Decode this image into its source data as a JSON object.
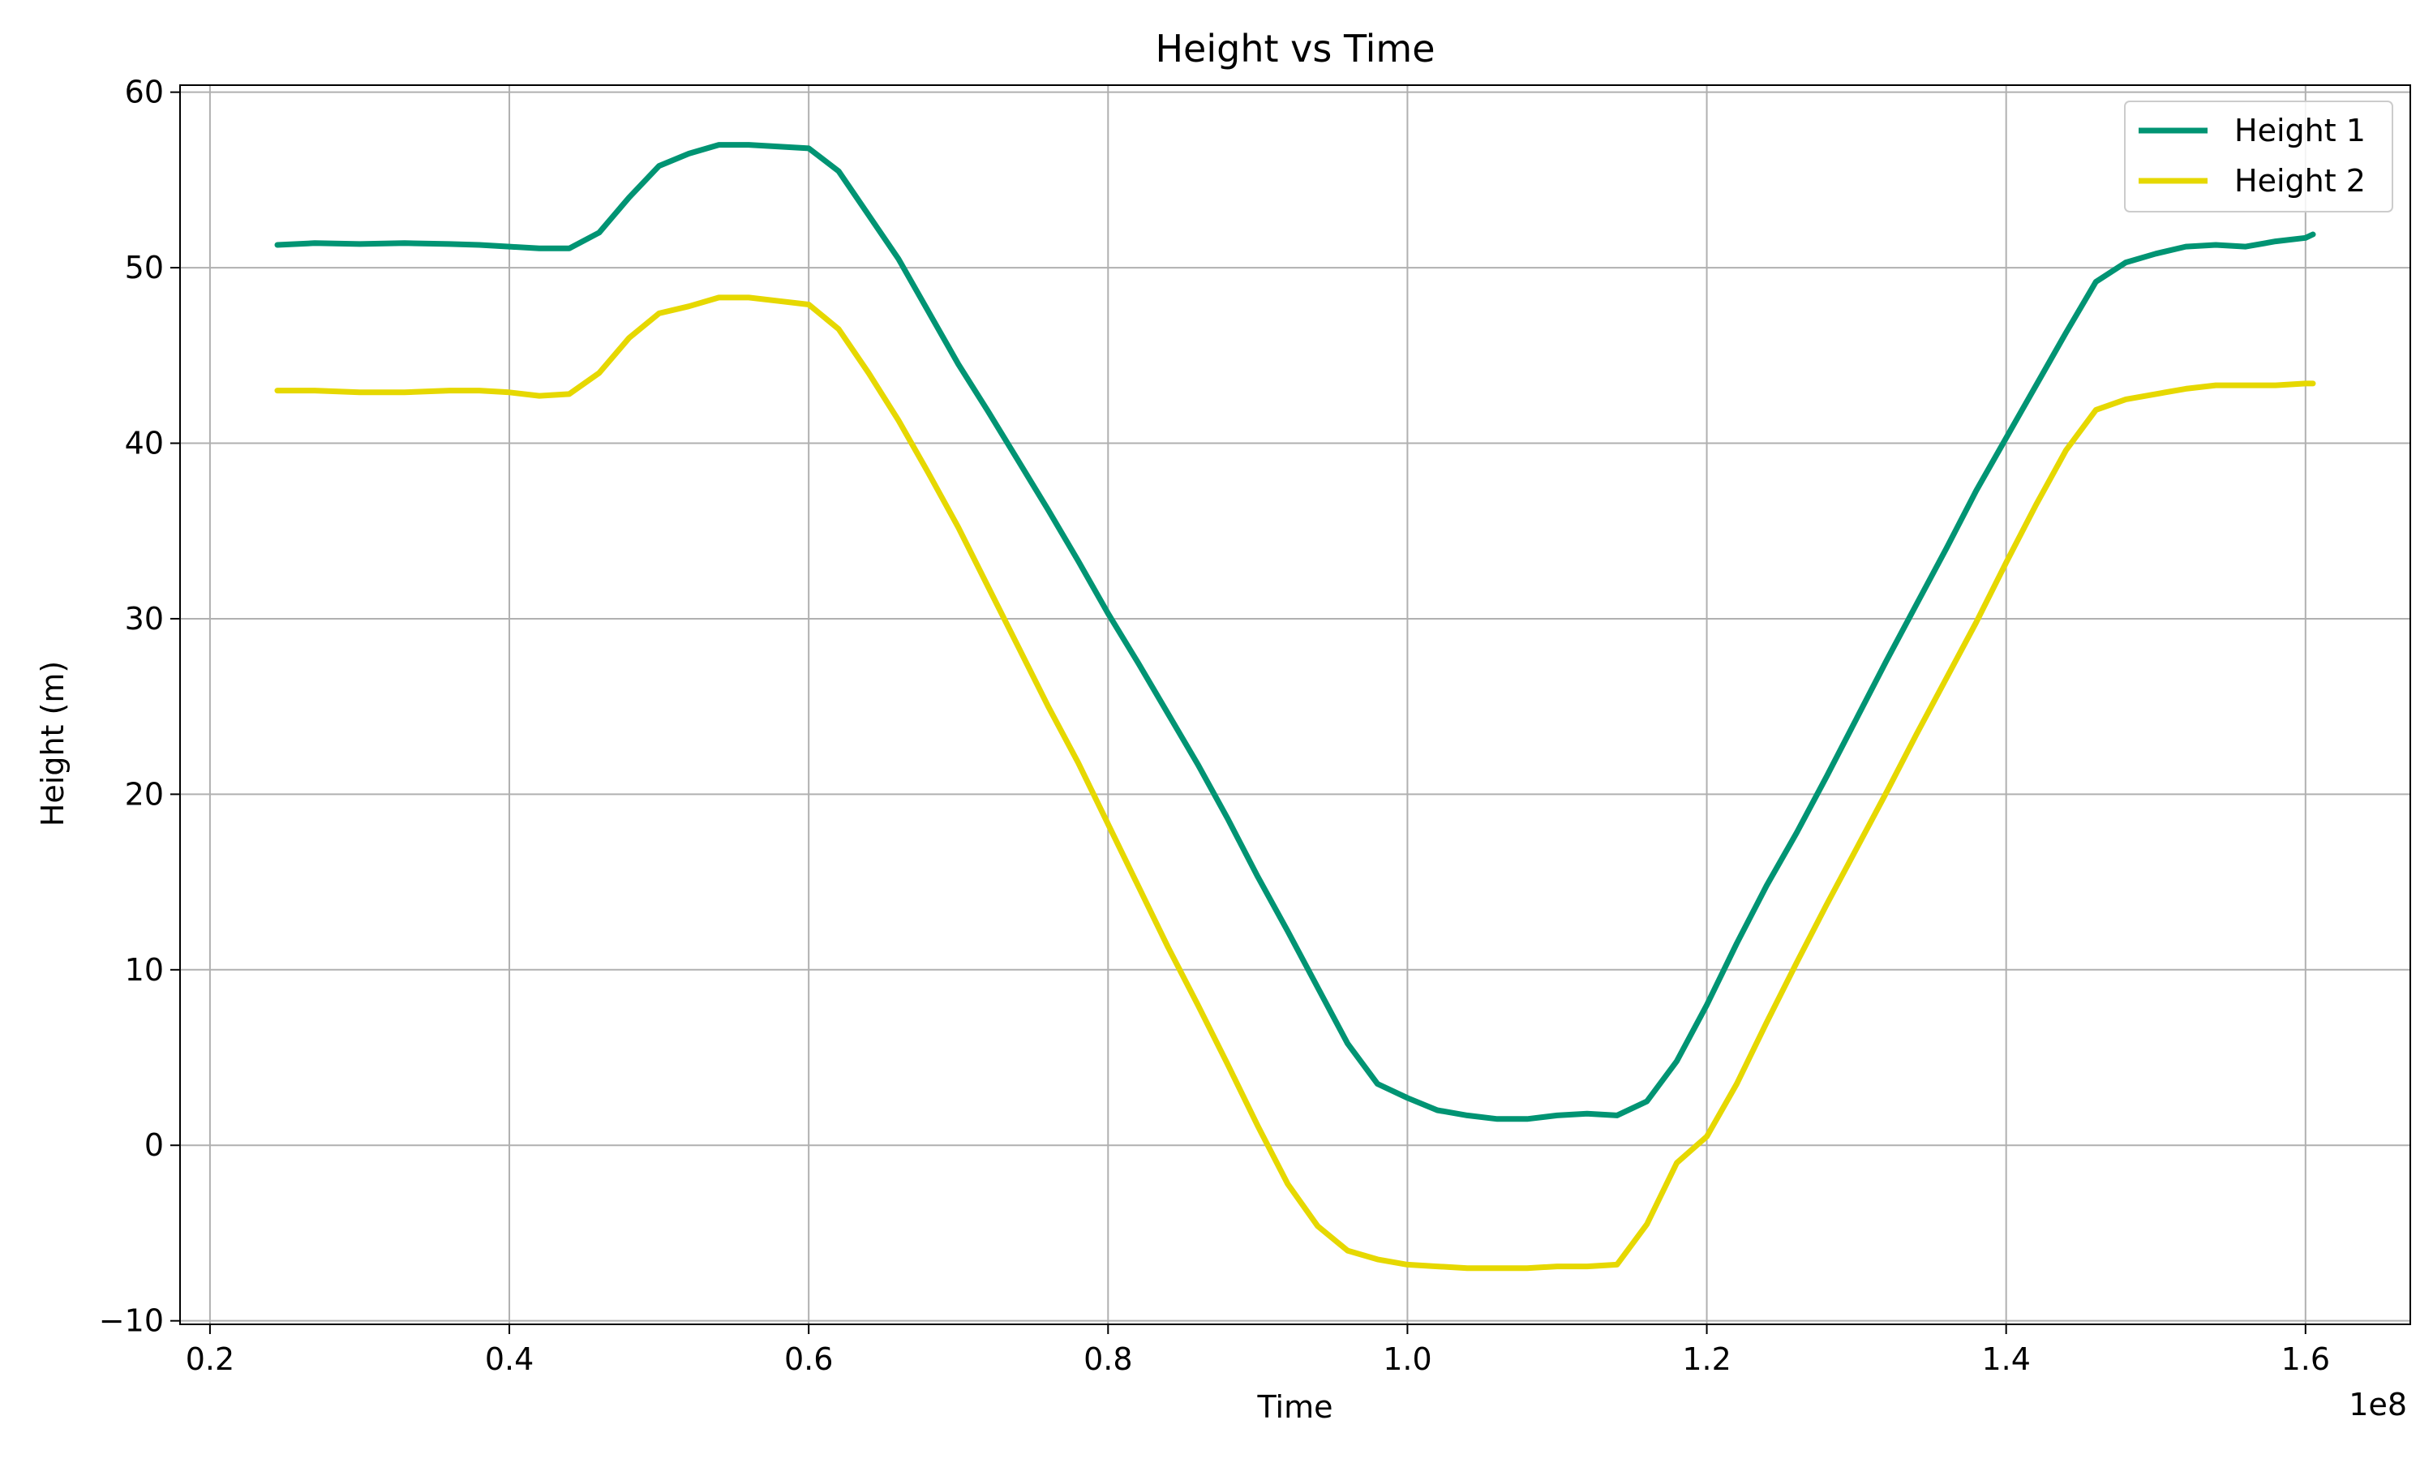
{
  "chart_data": {
    "type": "line",
    "title": "Height vs Time",
    "xlabel": "Time",
    "ylabel": "Height (m)",
    "x_offset_label": "1e8",
    "xlim": [
      0.18,
      1.67
    ],
    "ylim": [
      -10.2,
      60.4
    ],
    "x_ticks": [
      0.2,
      0.4,
      0.6,
      0.8,
      1.0,
      1.2,
      1.4,
      1.6
    ],
    "x_tick_labels": [
      "0.2",
      "0.4",
      "0.6",
      "0.8",
      "1.0",
      "1.2",
      "1.4",
      "1.6"
    ],
    "y_ticks": [
      -10,
      0,
      10,
      20,
      30,
      40,
      50,
      60
    ],
    "y_tick_labels": [
      "−10",
      "0",
      "10",
      "20",
      "30",
      "40",
      "50",
      "60"
    ],
    "grid": true,
    "legend_position": "top-right",
    "series": [
      {
        "name": "Height 1",
        "color": "#009473",
        "points": [
          [
            0.245,
            51.3
          ],
          [
            0.27,
            51.4
          ],
          [
            0.3,
            51.35
          ],
          [
            0.33,
            51.4
          ],
          [
            0.36,
            51.35
          ],
          [
            0.38,
            51.3
          ],
          [
            0.4,
            51.2
          ],
          [
            0.42,
            51.1
          ],
          [
            0.44,
            51.1
          ],
          [
            0.46,
            52.0
          ],
          [
            0.48,
            54.0
          ],
          [
            0.5,
            55.8
          ],
          [
            0.52,
            56.5
          ],
          [
            0.54,
            57.0
          ],
          [
            0.56,
            57.0
          ],
          [
            0.58,
            56.9
          ],
          [
            0.6,
            56.8
          ],
          [
            0.62,
            55.5
          ],
          [
            0.64,
            53.0
          ],
          [
            0.66,
            50.5
          ],
          [
            0.68,
            47.5
          ],
          [
            0.7,
            44.5
          ],
          [
            0.72,
            41.8
          ],
          [
            0.74,
            39.0
          ],
          [
            0.76,
            36.2
          ],
          [
            0.78,
            33.3
          ],
          [
            0.8,
            30.3
          ],
          [
            0.82,
            27.5
          ],
          [
            0.84,
            24.6
          ],
          [
            0.86,
            21.7
          ],
          [
            0.88,
            18.6
          ],
          [
            0.9,
            15.3
          ],
          [
            0.92,
            12.2
          ],
          [
            0.94,
            9.0
          ],
          [
            0.96,
            5.8
          ],
          [
            0.98,
            3.5
          ],
          [
            1.0,
            2.7
          ],
          [
            1.02,
            2.0
          ],
          [
            1.04,
            1.7
          ],
          [
            1.06,
            1.5
          ],
          [
            1.08,
            1.5
          ],
          [
            1.1,
            1.7
          ],
          [
            1.12,
            1.8
          ],
          [
            1.14,
            1.7
          ],
          [
            1.16,
            2.5
          ],
          [
            1.18,
            4.8
          ],
          [
            1.2,
            8.0
          ],
          [
            1.22,
            11.5
          ],
          [
            1.24,
            14.8
          ],
          [
            1.26,
            17.8
          ],
          [
            1.28,
            21.0
          ],
          [
            1.3,
            24.3
          ],
          [
            1.32,
            27.6
          ],
          [
            1.34,
            30.8
          ],
          [
            1.36,
            34.0
          ],
          [
            1.38,
            37.3
          ],
          [
            1.4,
            40.3
          ],
          [
            1.42,
            43.3
          ],
          [
            1.44,
            46.3
          ],
          [
            1.46,
            49.2
          ],
          [
            1.48,
            50.3
          ],
          [
            1.5,
            50.8
          ],
          [
            1.52,
            51.2
          ],
          [
            1.54,
            51.3
          ],
          [
            1.56,
            51.2
          ],
          [
            1.58,
            51.5
          ],
          [
            1.6,
            51.7
          ],
          [
            1.605,
            51.9
          ]
        ]
      },
      {
        "name": "Height 2",
        "color": "#e6d800",
        "points": [
          [
            0.245,
            43.0
          ],
          [
            0.27,
            43.0
          ],
          [
            0.3,
            42.9
          ],
          [
            0.33,
            42.9
          ],
          [
            0.36,
            43.0
          ],
          [
            0.38,
            43.0
          ],
          [
            0.4,
            42.9
          ],
          [
            0.42,
            42.7
          ],
          [
            0.44,
            42.8
          ],
          [
            0.46,
            44.0
          ],
          [
            0.48,
            46.0
          ],
          [
            0.5,
            47.4
          ],
          [
            0.52,
            47.8
          ],
          [
            0.54,
            48.3
          ],
          [
            0.56,
            48.3
          ],
          [
            0.58,
            48.1
          ],
          [
            0.6,
            47.9
          ],
          [
            0.62,
            46.5
          ],
          [
            0.64,
            44.0
          ],
          [
            0.66,
            41.3
          ],
          [
            0.68,
            38.3
          ],
          [
            0.7,
            35.2
          ],
          [
            0.72,
            31.8
          ],
          [
            0.74,
            28.4
          ],
          [
            0.76,
            25.0
          ],
          [
            0.78,
            21.8
          ],
          [
            0.8,
            18.3
          ],
          [
            0.82,
            14.8
          ],
          [
            0.84,
            11.3
          ],
          [
            0.86,
            8.0
          ],
          [
            0.88,
            4.6
          ],
          [
            0.9,
            1.1
          ],
          [
            0.92,
            -2.2
          ],
          [
            0.94,
            -4.6
          ],
          [
            0.96,
            -6.0
          ],
          [
            0.98,
            -6.5
          ],
          [
            1.0,
            -6.8
          ],
          [
            1.02,
            -6.9
          ],
          [
            1.04,
            -7.0
          ],
          [
            1.06,
            -7.0
          ],
          [
            1.08,
            -7.0
          ],
          [
            1.1,
            -6.9
          ],
          [
            1.12,
            -6.9
          ],
          [
            1.14,
            -6.8
          ],
          [
            1.16,
            -4.5
          ],
          [
            1.18,
            -1.0
          ],
          [
            1.2,
            0.5
          ],
          [
            1.22,
            3.5
          ],
          [
            1.24,
            7.0
          ],
          [
            1.26,
            10.4
          ],
          [
            1.28,
            13.7
          ],
          [
            1.3,
            16.9
          ],
          [
            1.32,
            20.1
          ],
          [
            1.34,
            23.4
          ],
          [
            1.36,
            26.6
          ],
          [
            1.38,
            29.8
          ],
          [
            1.4,
            33.2
          ],
          [
            1.42,
            36.5
          ],
          [
            1.44,
            39.6
          ],
          [
            1.46,
            41.9
          ],
          [
            1.48,
            42.5
          ],
          [
            1.5,
            42.8
          ],
          [
            1.52,
            43.1
          ],
          [
            1.54,
            43.3
          ],
          [
            1.56,
            43.3
          ],
          [
            1.58,
            43.3
          ],
          [
            1.6,
            43.4
          ],
          [
            1.605,
            43.4
          ]
        ]
      }
    ]
  }
}
